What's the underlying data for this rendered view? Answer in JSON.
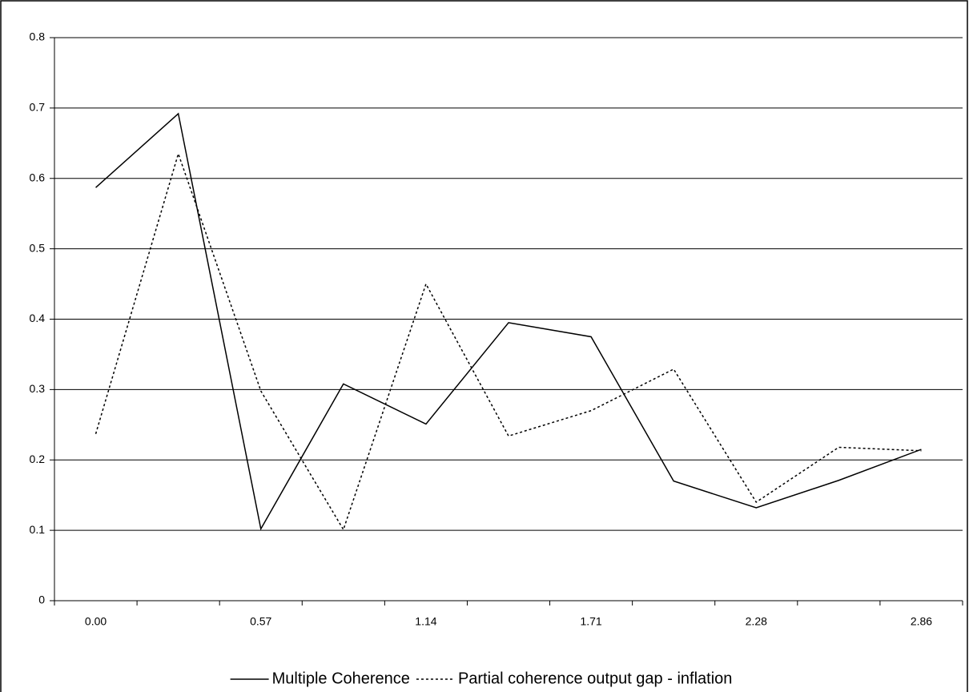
{
  "chart_data": {
    "type": "line",
    "categories": [
      "0.00",
      null,
      "0.57",
      null,
      "1.14",
      null,
      "1.71",
      null,
      "2.28",
      null,
      "2.86"
    ],
    "series": [
      {
        "name": "Multiple Coherence",
        "color": "#000000",
        "style": "solid",
        "values": [
          0.587,
          0.692,
          0.102,
          0.308,
          0.251,
          0.395,
          0.375,
          0.17,
          0.132,
          0.171,
          0.215
        ]
      },
      {
        "name": "Partial coherence output gap - inflation",
        "color": "#000000",
        "style": "dotted",
        "values": [
          0.237,
          0.635,
          0.298,
          0.101,
          0.45,
          0.234,
          0.27,
          0.329,
          0.14,
          0.218,
          0.213
        ]
      }
    ],
    "ylim": [
      0,
      0.8
    ],
    "yticks": [
      0,
      0.1,
      0.2,
      0.3,
      0.4,
      0.5,
      0.6,
      0.7,
      0.8
    ],
    "grid": true,
    "legend": "bottom"
  }
}
